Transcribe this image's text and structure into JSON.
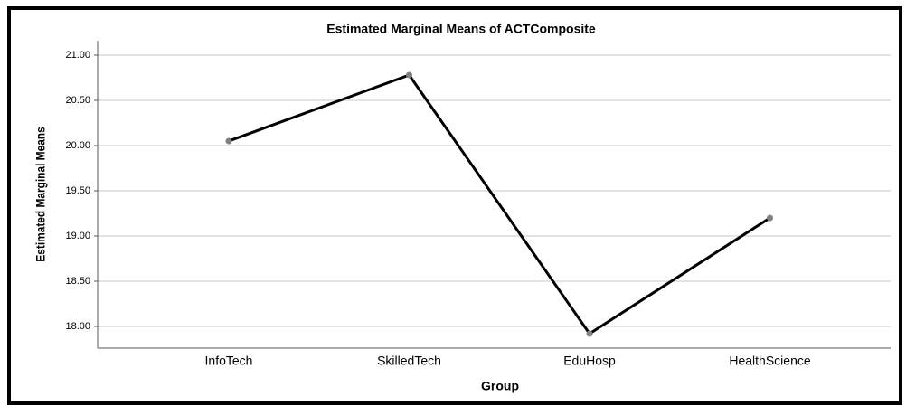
{
  "chart_data": {
    "type": "line",
    "title": "Estimated Marginal Means of ACTComposite",
    "x_label": "Group",
    "y_label": "Estimated Marginal Means",
    "categories": [
      "InfoTech",
      "SkilledTech",
      "EduHosp",
      "HealthScience"
    ],
    "series": [
      {
        "name": "ACTComposite",
        "color": "#000000",
        "marker_color": "#808080",
        "values": [
          20.05,
          20.78,
          17.92,
          19.2
        ]
      }
    ],
    "ylim": [
      17.76,
      21.16
    ],
    "yticks": [
      {
        "value": 18,
        "label": "18.00"
      },
      {
        "value": 18.5,
        "label": "18.50"
      },
      {
        "value": 19,
        "label": "19.00"
      },
      {
        "value": 19.5,
        "label": "19.50"
      },
      {
        "value": 20,
        "label": "20.00"
      },
      {
        "value": 20.5,
        "label": "20.50"
      },
      {
        "value": 21,
        "label": "21.00"
      }
    ],
    "grid": true
  }
}
